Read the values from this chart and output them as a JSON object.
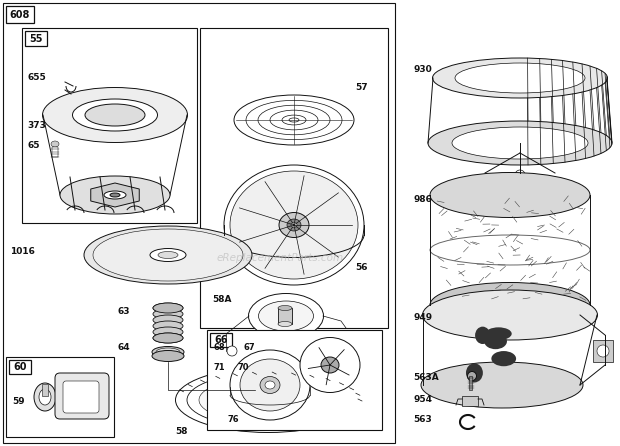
{
  "bg_color": "#ffffff",
  "border_color": "#111111",
  "watermark": "eReplacementParts.com",
  "fig_w": 6.2,
  "fig_h": 4.46,
  "dpi": 100
}
